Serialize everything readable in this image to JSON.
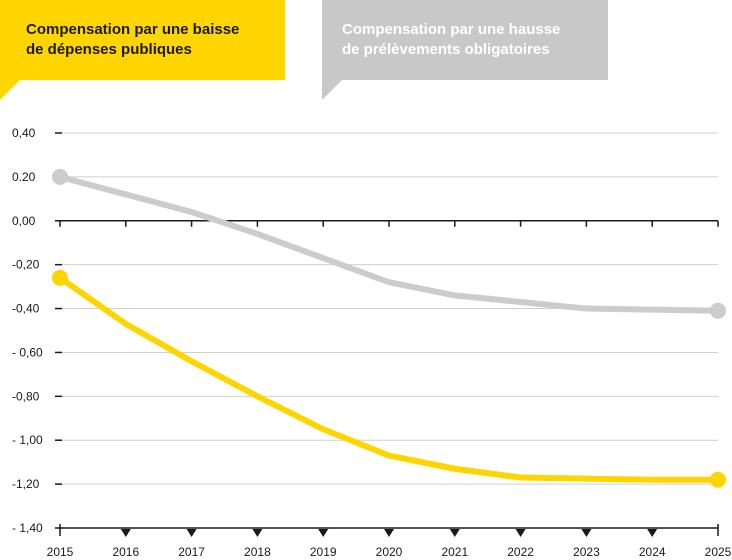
{
  "legend": {
    "yellow_line1": "Compensation par une baisse",
    "yellow_line2": "de dépenses publiques",
    "gray_line1": "Compensation par une hausse",
    "gray_line2": "de prélèvements obligatoires"
  },
  "colors": {
    "yellow": "#ffd500",
    "gray": "#cccccc",
    "axis": "#1a1a1a",
    "grid": "#cfcfcf"
  },
  "chart_data": {
    "type": "line",
    "x": [
      2015,
      2016,
      2017,
      2018,
      2019,
      2020,
      2021,
      2022,
      2023,
      2024,
      2025
    ],
    "x_tick_labels": [
      "2015",
      "2016",
      "2017",
      "2018",
      "2019",
      "2020",
      "2021",
      "2022",
      "2023",
      "2024",
      "2025"
    ],
    "y_ticks": [
      0.4,
      0.2,
      0.0,
      -0.2,
      -0.4,
      -0.6,
      -0.8,
      -1.0,
      -1.2,
      -1.4
    ],
    "y_tick_labels": [
      "0,40",
      "0.20",
      "0,00",
      "-0,20",
      "-0,40",
      "- 0,60",
      "-0,80",
      "- 1,00",
      "-1,20",
      "- 1,40"
    ],
    "ylim": [
      -1.4,
      0.4
    ],
    "grid": true,
    "legend_position": "top",
    "series": [
      {
        "name": "Compensation par une baisse de dépenses publiques",
        "color": "#ffd500",
        "values": [
          -0.26,
          -0.47,
          -0.64,
          -0.8,
          -0.95,
          -1.07,
          -1.13,
          -1.17,
          -1.175,
          -1.18,
          -1.18
        ]
      },
      {
        "name": "Compensation par une hausse de prélèvements obligatoires",
        "color": "#cccccc",
        "values": [
          0.2,
          0.12,
          0.04,
          -0.06,
          -0.17,
          -0.28,
          -0.34,
          -0.37,
          -0.4,
          -0.405,
          -0.41
        ]
      }
    ]
  }
}
